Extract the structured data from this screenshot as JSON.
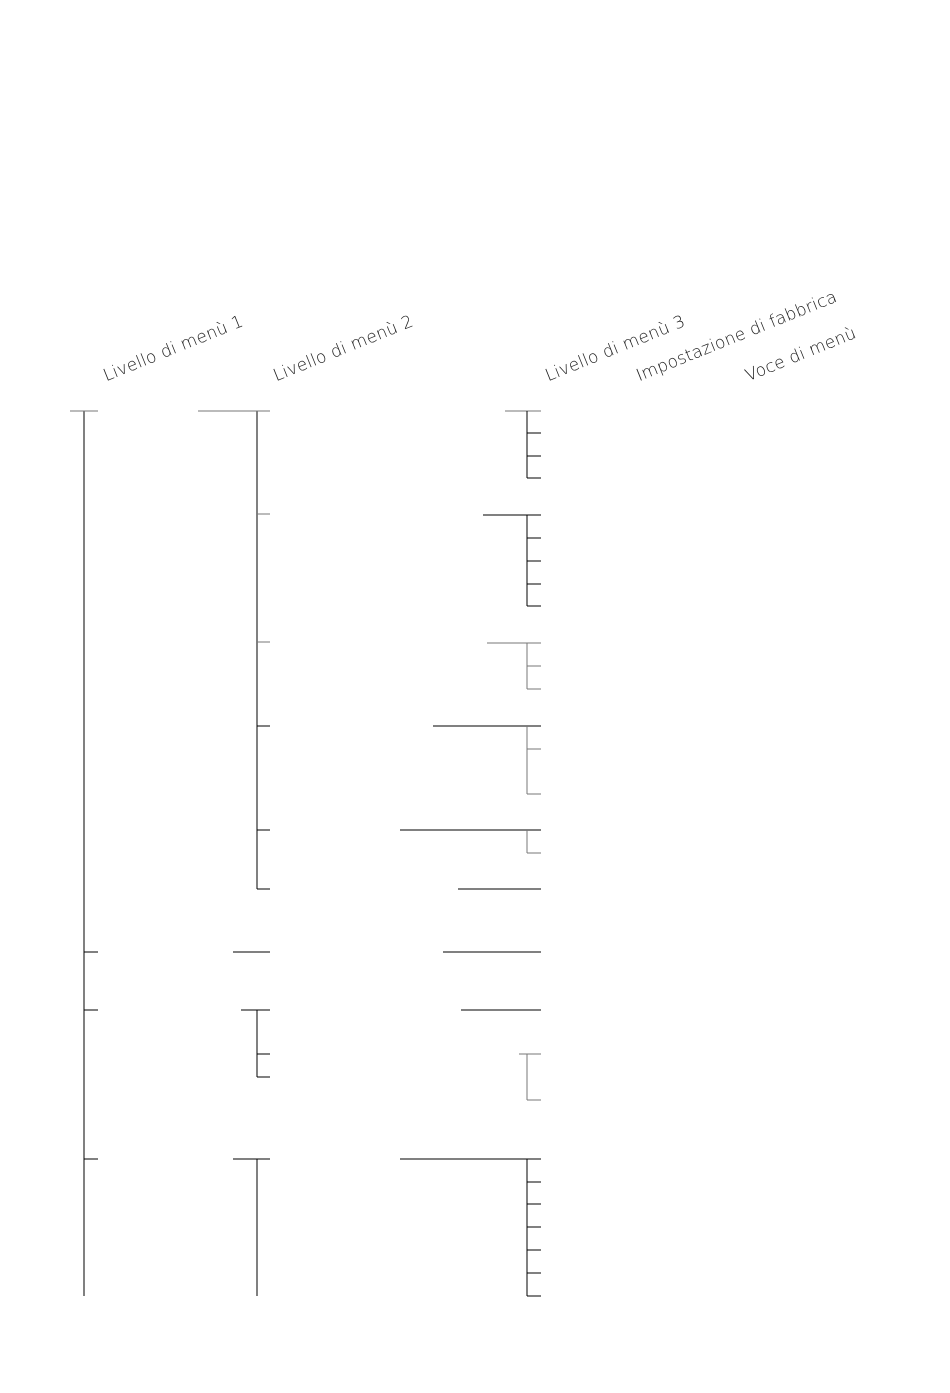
{
  "headers": {
    "level1": "Livello di menù 1",
    "level2": "Livello di menù 2",
    "level3": "Livello di menù 3",
    "factory": "Impostazione di fabbrica",
    "item": "Voce di menù"
  },
  "colors": {
    "line": "#000000",
    "line_light": "#777777"
  }
}
